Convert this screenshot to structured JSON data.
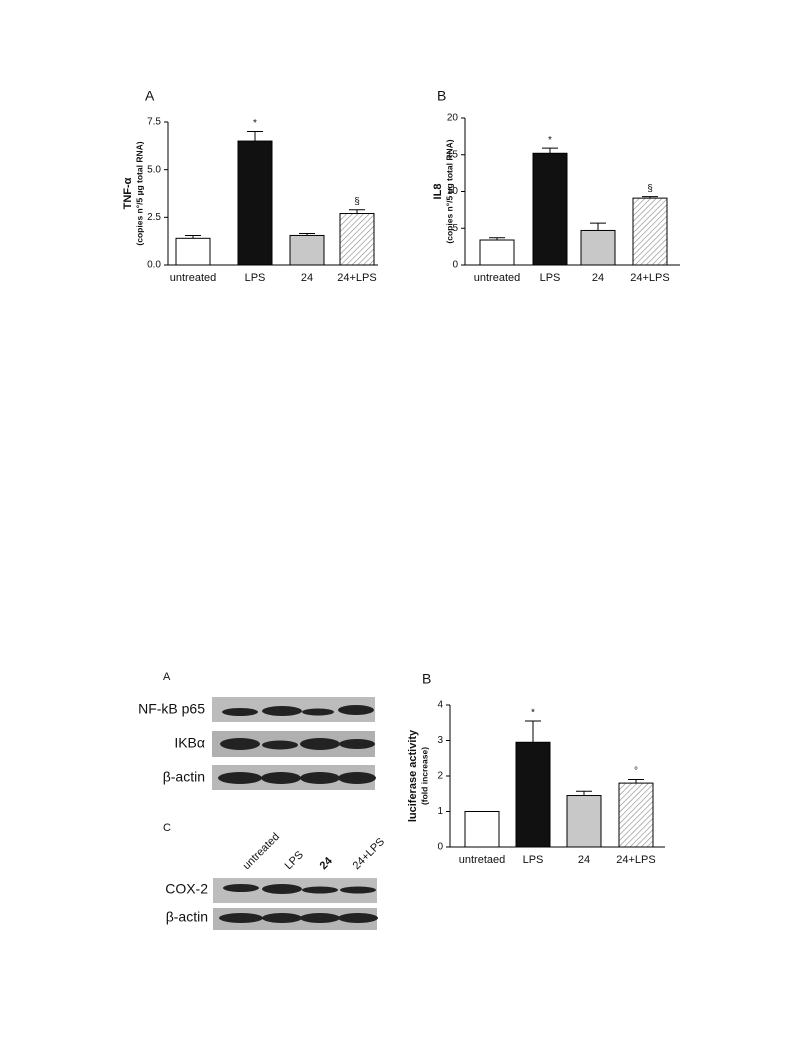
{
  "chart_data": [
    {
      "type": "bar",
      "panel": "A",
      "ylabel": "TNF-α",
      "ylabel2": "(copies n°/5 µg total RNA)",
      "categories": [
        "untreated",
        "LPS",
        "24",
        "24+LPS"
      ],
      "values": [
        1.4,
        6.5,
        1.55,
        2.7
      ],
      "errors": [
        0.15,
        0.5,
        0.1,
        0.2
      ],
      "annotations": [
        null,
        "*",
        null,
        "§"
      ],
      "colors": [
        "#ffffff",
        "#111111",
        "#c8c8c8",
        "#ffffff"
      ],
      "hatch": [
        false,
        false,
        false,
        true
      ],
      "ylim": [
        0,
        7.5
      ],
      "yticks": [
        {
          "value": 0,
          "label": "0.0"
        },
        {
          "value": 2.5,
          "label": "2.5"
        },
        {
          "value": 5,
          "label": "5.0"
        },
        {
          "value": 7.5,
          "label": "7.5"
        }
      ]
    },
    {
      "type": "bar",
      "panel": "B",
      "ylabel": "IL8",
      "ylabel2": "(copies n°/5 µg total RNA)",
      "categories": [
        "untreated",
        "LPS",
        "24",
        "24+LPS"
      ],
      "values": [
        3.4,
        15.2,
        4.7,
        9.1
      ],
      "errors": [
        0.3,
        0.7,
        1.0,
        0.2
      ],
      "annotations": [
        null,
        "*",
        null,
        "§"
      ],
      "colors": [
        "#ffffff",
        "#111111",
        "#c8c8c8",
        "#ffffff"
      ],
      "hatch": [
        false,
        false,
        false,
        true
      ],
      "ylim": [
        0,
        20
      ],
      "yticks": [
        0,
        5,
        10,
        15,
        20
      ]
    },
    {
      "type": "bar",
      "panel": "B",
      "ylabel": "luciferase activity",
      "ylabel2": "(fold increase)",
      "categories": [
        "untretaed",
        "LPS",
        "24",
        "24+LPS"
      ],
      "values": [
        1.0,
        2.95,
        1.45,
        1.8
      ],
      "errors": [
        0,
        0.6,
        0.12,
        0.1
      ],
      "annotations": [
        null,
        "*",
        null,
        "°"
      ],
      "colors": [
        "#ffffff",
        "#111111",
        "#c8c8c8",
        "#ffffff"
      ],
      "hatch": [
        false,
        false,
        false,
        true
      ],
      "ylim": [
        0,
        4
      ],
      "yticks": [
        0,
        1,
        2,
        3,
        4
      ]
    }
  ],
  "blots": {
    "panel_a": {
      "letter": "A",
      "rows": [
        "NF-kB p65",
        "IKBα",
        "β-actin"
      ]
    },
    "panel_c": {
      "letter": "C",
      "lanes": [
        "untreated",
        "LPS",
        "24",
        "24+LPS"
      ],
      "rows": [
        "COX-2",
        "β-actin"
      ]
    }
  }
}
